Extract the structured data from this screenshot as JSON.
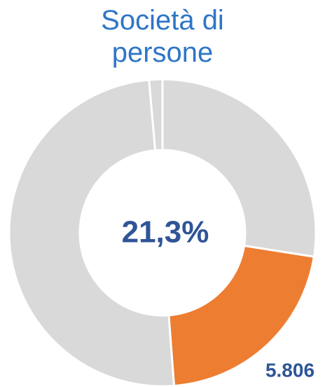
{
  "chart_data": {
    "type": "donut",
    "title": "Società di persone",
    "categories": [
      null,
      null,
      null,
      null
    ],
    "values": [
      27.5,
      21.3,
      49.8,
      1.4
    ],
    "value_labels": [
      null,
      "21,3%",
      null,
      null
    ],
    "colors": [
      "#d9d9d9",
      "#ed7d31",
      "#d9d9d9",
      "#d9d9d9"
    ],
    "annotation": "5.806"
  }
}
